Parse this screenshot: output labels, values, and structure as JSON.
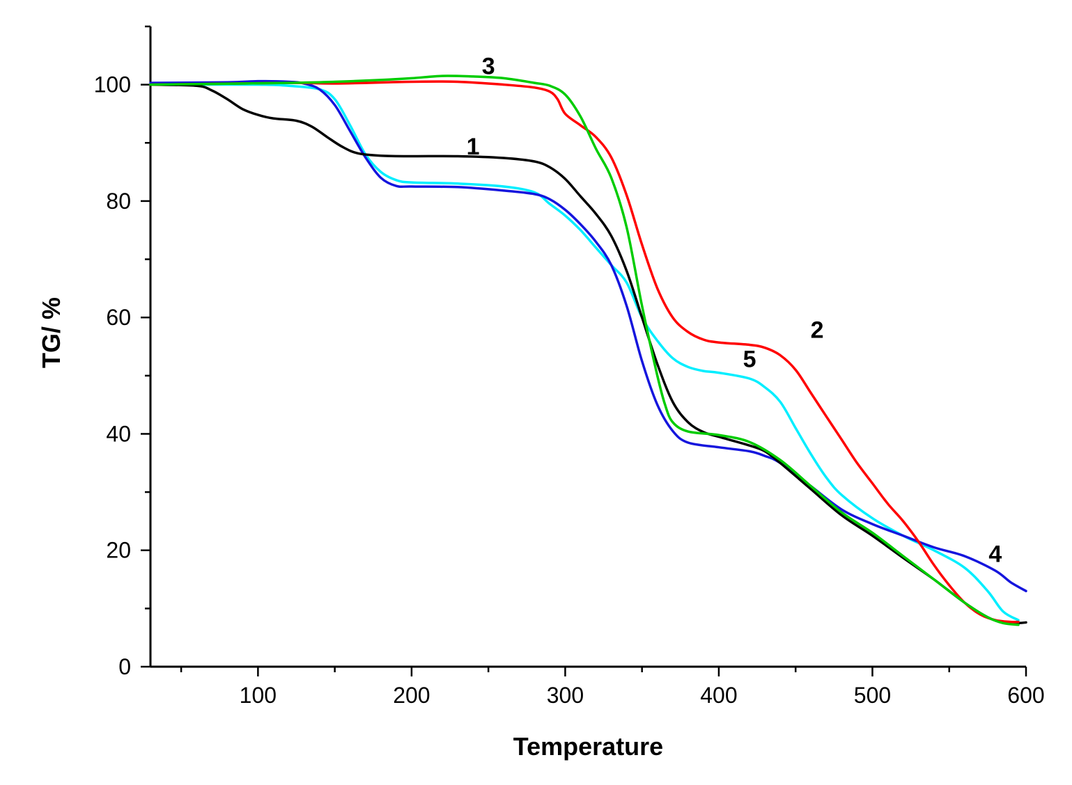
{
  "chart_data": {
    "type": "line",
    "xlabel": "Temperature",
    "ylabel": "TG/ %",
    "xlim": [
      30,
      600
    ],
    "ylim": [
      0,
      110
    ],
    "x_ticks": [
      100,
      200,
      300,
      400,
      500,
      600
    ],
    "x_minor_ticks": [
      50,
      150,
      250,
      350,
      450,
      550
    ],
    "y_ticks": [
      0,
      20,
      40,
      60,
      80,
      100
    ],
    "y_minor_ticks": [
      10,
      30,
      50,
      70,
      90,
      110
    ],
    "grid": false,
    "series": [
      {
        "name": "1",
        "color": "#000000",
        "label_at": [
          240,
          88
        ],
        "points": [
          [
            30,
            100
          ],
          [
            60,
            99.8
          ],
          [
            70,
            99
          ],
          [
            80,
            97.5
          ],
          [
            90,
            95.8
          ],
          [
            100,
            94.8
          ],
          [
            110,
            94.2
          ],
          [
            125,
            93.8
          ],
          [
            135,
            92.8
          ],
          [
            145,
            91
          ],
          [
            155,
            89.3
          ],
          [
            165,
            88.2
          ],
          [
            180,
            87.8
          ],
          [
            200,
            87.7
          ],
          [
            230,
            87.7
          ],
          [
            260,
            87.4
          ],
          [
            280,
            86.8
          ],
          [
            290,
            85.8
          ],
          [
            300,
            83.8
          ],
          [
            310,
            80.8
          ],
          [
            320,
            77.8
          ],
          [
            330,
            74
          ],
          [
            340,
            68
          ],
          [
            350,
            60
          ],
          [
            360,
            52
          ],
          [
            370,
            45.5
          ],
          [
            380,
            42
          ],
          [
            390,
            40.3
          ],
          [
            400,
            39.5
          ],
          [
            420,
            38
          ],
          [
            430,
            37
          ],
          [
            440,
            35
          ],
          [
            460,
            30.5
          ],
          [
            480,
            26
          ],
          [
            500,
            22.5
          ],
          [
            520,
            18.7
          ],
          [
            540,
            15
          ],
          [
            560,
            11
          ],
          [
            575,
            8.5
          ],
          [
            585,
            7.6
          ],
          [
            595,
            7.5
          ],
          [
            600,
            7.6
          ]
        ]
      },
      {
        "name": "2",
        "color": "#ff0000",
        "label_at": [
          464,
          56.5
        ],
        "points": [
          [
            30,
            100
          ],
          [
            120,
            100.3
          ],
          [
            150,
            100.2
          ],
          [
            200,
            100.5
          ],
          [
            230,
            100.5
          ],
          [
            260,
            100
          ],
          [
            280,
            99.5
          ],
          [
            290,
            98.8
          ],
          [
            295,
            97.5
          ],
          [
            300,
            95
          ],
          [
            310,
            93
          ],
          [
            320,
            91
          ],
          [
            330,
            87.5
          ],
          [
            340,
            81
          ],
          [
            350,
            72.5
          ],
          [
            360,
            65
          ],
          [
            370,
            60
          ],
          [
            380,
            57.5
          ],
          [
            390,
            56.2
          ],
          [
            400,
            55.7
          ],
          [
            420,
            55.3
          ],
          [
            430,
            54.8
          ],
          [
            440,
            53.5
          ],
          [
            450,
            51
          ],
          [
            460,
            47
          ],
          [
            470,
            43
          ],
          [
            480,
            39
          ],
          [
            490,
            35
          ],
          [
            500,
            31.5
          ],
          [
            510,
            28
          ],
          [
            520,
            25
          ],
          [
            530,
            21.5
          ],
          [
            540,
            17.5
          ],
          [
            550,
            14
          ],
          [
            560,
            11
          ],
          [
            570,
            9
          ],
          [
            580,
            8
          ],
          [
            590,
            7.7
          ],
          [
            595,
            7.7
          ]
        ]
      },
      {
        "name": "3",
        "color": "#00cc00",
        "label_at": [
          250,
          101.8
        ],
        "points": [
          [
            30,
            100
          ],
          [
            120,
            100.3
          ],
          [
            150,
            100.5
          ],
          [
            180,
            100.8
          ],
          [
            200,
            101.1
          ],
          [
            220,
            101.5
          ],
          [
            240,
            101.4
          ],
          [
            260,
            101.1
          ],
          [
            280,
            100.3
          ],
          [
            290,
            99.8
          ],
          [
            300,
            98.3
          ],
          [
            310,
            94.5
          ],
          [
            320,
            89
          ],
          [
            330,
            84
          ],
          [
            340,
            75.5
          ],
          [
            350,
            62
          ],
          [
            360,
            50
          ],
          [
            365,
            45
          ],
          [
            370,
            42
          ],
          [
            380,
            40.4
          ],
          [
            400,
            39.8
          ],
          [
            420,
            38.6
          ],
          [
            440,
            35.5
          ],
          [
            460,
            31
          ],
          [
            480,
            26.5
          ],
          [
            500,
            23
          ],
          [
            520,
            19
          ],
          [
            540,
            15
          ],
          [
            560,
            11
          ],
          [
            575,
            8.5
          ],
          [
            585,
            7.5
          ],
          [
            595,
            7.2
          ]
        ]
      },
      {
        "name": "4",
        "color": "#1515dd",
        "label_at": [
          580,
          18
        ],
        "points": [
          [
            30,
            100.3
          ],
          [
            80,
            100.4
          ],
          [
            100,
            100.6
          ],
          [
            120,
            100.5
          ],
          [
            130,
            100.2
          ],
          [
            140,
            99.2
          ],
          [
            150,
            96.5
          ],
          [
            160,
            92
          ],
          [
            170,
            87.5
          ],
          [
            180,
            84
          ],
          [
            190,
            82.6
          ],
          [
            200,
            82.5
          ],
          [
            230,
            82.4
          ],
          [
            260,
            81.8
          ],
          [
            280,
            81.2
          ],
          [
            290,
            80.3
          ],
          [
            300,
            78.5
          ],
          [
            310,
            76
          ],
          [
            320,
            73
          ],
          [
            330,
            69
          ],
          [
            340,
            62
          ],
          [
            350,
            52.5
          ],
          [
            360,
            45
          ],
          [
            370,
            40.5
          ],
          [
            380,
            38.5
          ],
          [
            400,
            37.7
          ],
          [
            420,
            37
          ],
          [
            430,
            36.2
          ],
          [
            440,
            35
          ],
          [
            460,
            31
          ],
          [
            480,
            27
          ],
          [
            500,
            24.5
          ],
          [
            520,
            22.5
          ],
          [
            540,
            20.5
          ],
          [
            560,
            19
          ],
          [
            580,
            16.5
          ],
          [
            590,
            14.5
          ],
          [
            600,
            13
          ]
        ]
      },
      {
        "name": "5",
        "color": "#00eeff",
        "label_at": [
          420,
          51.5
        ],
        "points": [
          [
            30,
            100
          ],
          [
            100,
            100
          ],
          [
            120,
            99.8
          ],
          [
            140,
            99.2
          ],
          [
            150,
            97.5
          ],
          [
            160,
            93
          ],
          [
            170,
            88
          ],
          [
            180,
            85
          ],
          [
            190,
            83.6
          ],
          [
            200,
            83.2
          ],
          [
            230,
            83
          ],
          [
            260,
            82.5
          ],
          [
            280,
            81.5
          ],
          [
            290,
            79.5
          ],
          [
            300,
            77.5
          ],
          [
            310,
            75
          ],
          [
            320,
            72
          ],
          [
            330,
            69
          ],
          [
            340,
            66
          ],
          [
            350,
            60
          ],
          [
            360,
            56
          ],
          [
            370,
            53
          ],
          [
            380,
            51.5
          ],
          [
            390,
            50.8
          ],
          [
            400,
            50.5
          ],
          [
            420,
            49.5
          ],
          [
            430,
            48
          ],
          [
            440,
            45.5
          ],
          [
            450,
            41
          ],
          [
            460,
            36.5
          ],
          [
            470,
            32.5
          ],
          [
            480,
            29.5
          ],
          [
            500,
            25.5
          ],
          [
            520,
            22.5
          ],
          [
            540,
            20
          ],
          [
            560,
            17
          ],
          [
            575,
            13
          ],
          [
            585,
            9.5
          ],
          [
            595,
            8
          ]
        ]
      }
    ]
  }
}
